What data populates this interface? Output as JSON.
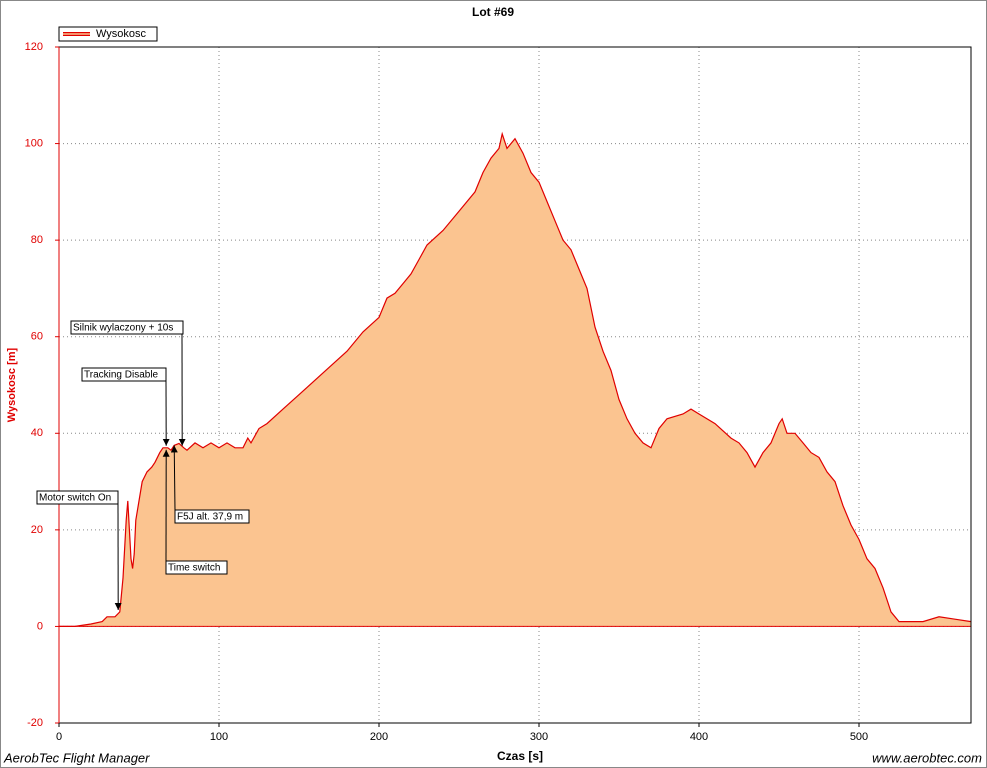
{
  "chart_data": {
    "type": "area",
    "title": "Lot #69",
    "x_label": "Czas [s]",
    "y_label": "Wysokosc [m]",
    "footer_left": "AerobTec Flight Manager",
    "footer_right": "www.aerobtec.com",
    "xlim": [
      0,
      570
    ],
    "ylim": [
      -20,
      120
    ],
    "xticks": [
      0,
      100,
      200,
      300,
      400,
      500
    ],
    "yticks": [
      -20,
      0,
      20,
      40,
      60,
      80,
      100,
      120
    ],
    "grid": true,
    "legend": "top-left",
    "fill_color": "#fbc490",
    "x": [
      0,
      10,
      20,
      27,
      30,
      35,
      38,
      40,
      42,
      43,
      44,
      45,
      46,
      47,
      48,
      50,
      52,
      55,
      58,
      60,
      63,
      65,
      68,
      70,
      72,
      75,
      78,
      80,
      85,
      90,
      95,
      100,
      105,
      110,
      115,
      118,
      120,
      125,
      130,
      140,
      150,
      160,
      170,
      180,
      190,
      200,
      205,
      210,
      215,
      220,
      225,
      230,
      240,
      250,
      260,
      265,
      270,
      275,
      277,
      280,
      285,
      290,
      295,
      300,
      305,
      310,
      315,
      320,
      325,
      330,
      335,
      340,
      345,
      350,
      355,
      360,
      365,
      370,
      375,
      380,
      390,
      395,
      400,
      410,
      420,
      425,
      430,
      435,
      440,
      445,
      450,
      452,
      455,
      460,
      465,
      470,
      475,
      480,
      485,
      490,
      495,
      500,
      505,
      510,
      515,
      520,
      525,
      530,
      540,
      550,
      560,
      570
    ],
    "series": [
      {
        "name": "Wysokosc",
        "color": "#e00000",
        "values": [
          0,
          0,
          0.5,
          1,
          2,
          2,
          3,
          10,
          22,
          26,
          20,
          14,
          12,
          15,
          22,
          26,
          30,
          32,
          33,
          34,
          36,
          37,
          37,
          36.5,
          37.5,
          37.9,
          37,
          36.5,
          38,
          37,
          38,
          37,
          38,
          37,
          37,
          39,
          38,
          41,
          42,
          45,
          48,
          51,
          54,
          57,
          61,
          64,
          68,
          69,
          71,
          73,
          76,
          79,
          82,
          86,
          90,
          94,
          97,
          99,
          102,
          99,
          101,
          98,
          94,
          92,
          88,
          84,
          80,
          78,
          74,
          70,
          62,
          57,
          53,
          47,
          43,
          40,
          38,
          37,
          41,
          43,
          44,
          45,
          44,
          42,
          39,
          38,
          36,
          33,
          36,
          38,
          42,
          43,
          40,
          40,
          38,
          36,
          35,
          32,
          30,
          25,
          21,
          18,
          14,
          12,
          8,
          3,
          1,
          1,
          1,
          2,
          1.5,
          1
        ]
      }
    ],
    "annotations": [
      {
        "text": "Silnik wylaczony + 10s",
        "x": 77,
        "y": 37
      },
      {
        "text": "Tracking Disable",
        "x": 67,
        "y": 37
      },
      {
        "text": "Motor switch On",
        "x": 37,
        "y": 3
      },
      {
        "text": "F5J alt. 37,9 m",
        "x": 72,
        "y": 37.9
      },
      {
        "text": "Time switch",
        "x": 67,
        "y": 37
      }
    ]
  }
}
